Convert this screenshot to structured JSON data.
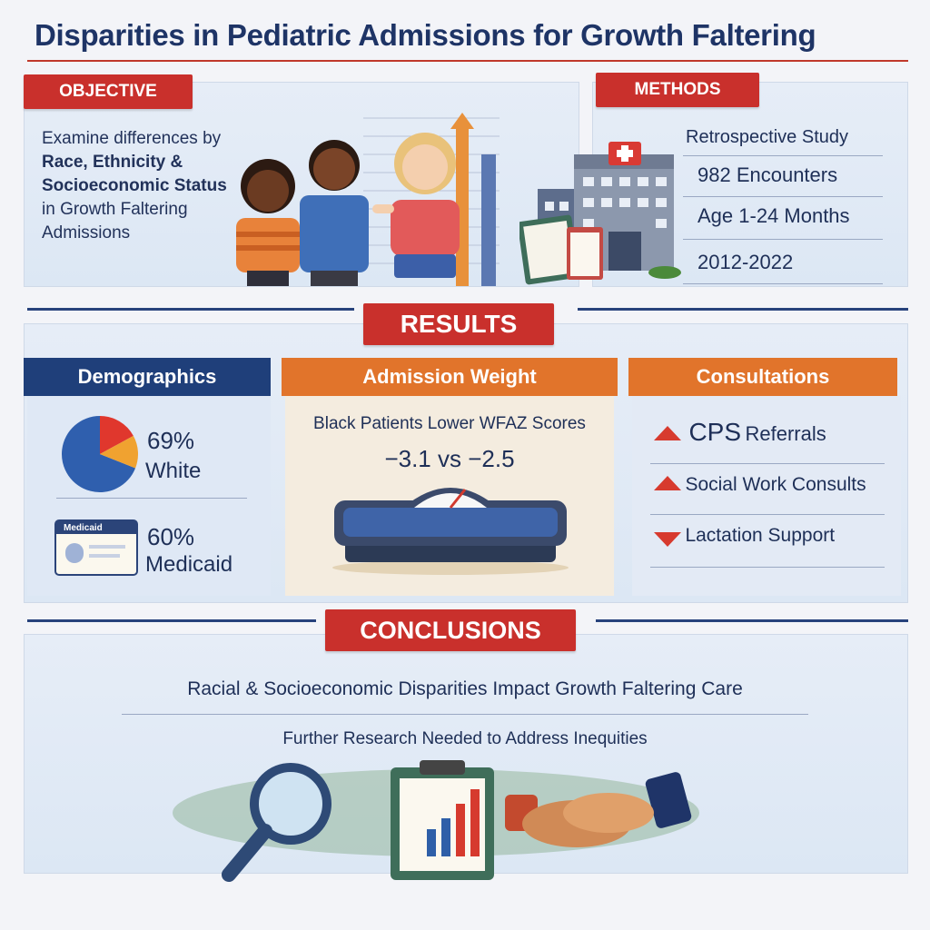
{
  "title": "Disparities in Pediatric Admissions for Growth Faltering",
  "objective": {
    "label": "OBJECTIVE",
    "line1": "Examine differences by",
    "line2": "Race, Ethnicity &",
    "line3": "Socioeconomic Status",
    "line4": "in Growth Faltering",
    "line5": "Admissions"
  },
  "methods": {
    "label": "METHODS",
    "items": [
      "Retrospective Study",
      "982 Encounters",
      "Age 1-24 Months",
      "2012-2022"
    ]
  },
  "results": {
    "label": "RESULTS",
    "demographics": {
      "label": "Demographics",
      "white_pct": "69%",
      "white_label": "White",
      "white_value": 0.69,
      "card_text": "Medicaid",
      "medicaid_pct": "60%",
      "medicaid_label": "Medicaid"
    },
    "admission_weight": {
      "label": "Admission Weight",
      "line1": "Black Patients Lower WFAZ Scores",
      "line2": "−3.1 vs −2.5"
    },
    "consultations": {
      "label": "Consultations",
      "items": [
        {
          "text_a": "CPS",
          "text_b": "Referrals",
          "direction": "up"
        },
        {
          "text_a": "Social Work Consults",
          "text_b": "",
          "direction": "up"
        },
        {
          "text_a": "Lactation Support",
          "text_b": "",
          "direction": "down"
        }
      ]
    }
  },
  "conclusions": {
    "label": "CONCLUSIONS",
    "line1": "Racial & Socioeconomic Disparities Impact Growth Faltering Care",
    "line2": "Further Research Needed to Address Inequities"
  },
  "colors": {
    "red": "#c9302c",
    "navy": "#1f3f7a",
    "orange": "#e1742b"
  }
}
